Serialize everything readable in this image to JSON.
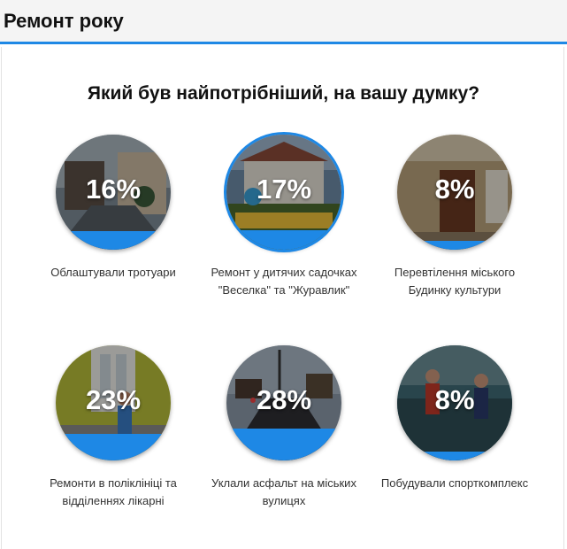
{
  "header": {
    "title": "Ремонт року"
  },
  "poll": {
    "question": "Який був найпотрібніший, на вашу думку?",
    "accent_color": "#1e88e5",
    "options": [
      {
        "percent": "16%",
        "label": "Облаштували тротуари",
        "image": "sidewalk-photo",
        "fill_fraction": 0.16,
        "selected": false
      },
      {
        "percent": "17%",
        "label": "Ремонт у дитячих садочках \"Веселка\" та \"Журавлик\"",
        "image": "kindergarten-photo",
        "fill_fraction": 0.17,
        "selected": true
      },
      {
        "percent": "8%",
        "label": "Перевтілення міського Будинку культури",
        "image": "culture-house-photo",
        "fill_fraction": 0.08,
        "selected": false
      },
      {
        "percent": "23%",
        "label": "Ремонти в поліклініці та відділеннях лікарні",
        "image": "clinic-photo",
        "fill_fraction": 0.23,
        "selected": false
      },
      {
        "percent": "28%",
        "label": "Уклали асфальт на міських вулицях",
        "image": "asphalt-photo",
        "fill_fraction": 0.28,
        "selected": false
      },
      {
        "percent": "8%",
        "label": "Побудували спорткомплекс",
        "image": "sports-photo",
        "fill_fraction": 0.08,
        "selected": false
      }
    ]
  }
}
